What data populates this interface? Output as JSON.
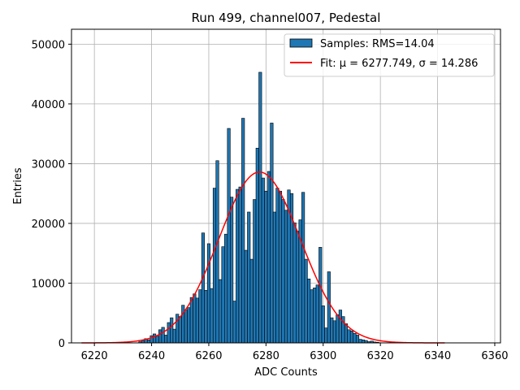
{
  "chart_data": {
    "type": "bar",
    "title": "Run 499, channel007, Pedestal",
    "xlabel": "ADC Counts",
    "ylabel": "Entries",
    "xlim": [
      6212,
      6362
    ],
    "ylim": [
      0,
      52500
    ],
    "xticks": [
      6220,
      6240,
      6260,
      6280,
      6300,
      6320,
      6340,
      6360
    ],
    "yticks": [
      0,
      10000,
      20000,
      30000,
      40000,
      50000
    ],
    "grid": true,
    "legend_position": "top-right",
    "series": [
      {
        "name": "Samples: RMS=14.04",
        "kind": "histogram",
        "color": "#1f77b4",
        "edge_color": "#000000",
        "bin_width": 1,
        "x": [
          6236,
          6237,
          6238,
          6239,
          6240,
          6241,
          6242,
          6243,
          6244,
          6245,
          6246,
          6247,
          6248,
          6249,
          6250,
          6251,
          6252,
          6253,
          6254,
          6255,
          6256,
          6257,
          6258,
          6259,
          6260,
          6261,
          6262,
          6263,
          6264,
          6265,
          6266,
          6267,
          6268,
          6269,
          6270,
          6271,
          6272,
          6273,
          6274,
          6275,
          6276,
          6277,
          6278,
          6279,
          6280,
          6281,
          6282,
          6283,
          6284,
          6285,
          6286,
          6287,
          6288,
          6289,
          6290,
          6291,
          6292,
          6293,
          6294,
          6295,
          6296,
          6297,
          6298,
          6299,
          6300,
          6301,
          6302,
          6303,
          6304,
          6305,
          6306,
          6307,
          6308,
          6309,
          6310,
          6311,
          6312,
          6313,
          6314,
          6315,
          6316,
          6317,
          6318,
          6319
        ],
        "values": [
          200,
          400,
          700,
          500,
          1200,
          1500,
          1100,
          2200,
          2600,
          1300,
          3400,
          4200,
          2300,
          4800,
          4400,
          6300,
          5500,
          5900,
          7600,
          8200,
          7500,
          8900,
          18400,
          8800,
          16600,
          9100,
          25900,
          30500,
          10600,
          16100,
          18200,
          35900,
          24400,
          7000,
          25700,
          26100,
          37600,
          15500,
          21900,
          14000,
          24000,
          32600,
          45300,
          27600,
          25400,
          28700,
          36800,
          21900,
          25900,
          25400,
          24000,
          22200,
          25600,
          25000,
          20100,
          18700,
          20600,
          25200,
          14000,
          10700,
          8900,
          9200,
          9700,
          16000,
          6200,
          2500,
          11900,
          4200,
          3700,
          4700,
          5500,
          4400,
          3200,
          2200,
          2000,
          1600,
          1300,
          600,
          500,
          400,
          200,
          300,
          150,
          100
        ]
      },
      {
        "name": "Fit: μ = 6277.749, σ = 14.286",
        "kind": "gaussian",
        "color": "#ff0000",
        "mu": 6277.749,
        "sigma": 14.286,
        "amplitude": 28600,
        "x_range": [
          6215.5,
          6342.5
        ]
      }
    ]
  }
}
